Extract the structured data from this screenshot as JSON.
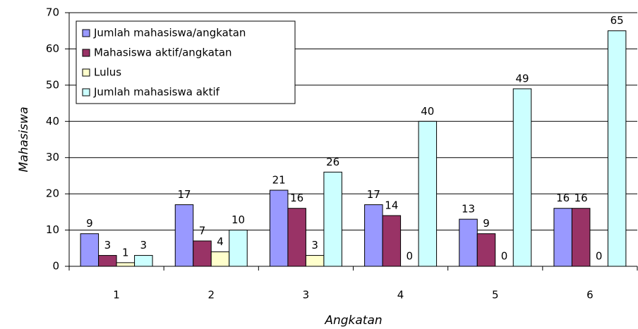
{
  "chart_data": {
    "type": "bar",
    "x_label": "Angkatan",
    "y_label": "Mahasiswa",
    "categories": [
      "1",
      "2",
      "3",
      "4",
      "5",
      "6"
    ],
    "series": [
      {
        "name": "Jumlah mahasiswa/angkatan",
        "color": "#9999ff",
        "values": [
          9,
          17,
          21,
          17,
          13,
          16
        ]
      },
      {
        "name": "Mahasiswa aktif/angkatan",
        "color": "#993366",
        "values": [
          3,
          7,
          16,
          14,
          9,
          16
        ]
      },
      {
        "name": "Lulus",
        "color": "#ffffcc",
        "values": [
          1,
          4,
          3,
          0,
          0,
          0
        ]
      },
      {
        "name": "Jumlah mahasiswa aktif",
        "color": "#ccffff",
        "values": [
          3,
          10,
          26,
          40,
          49,
          65
        ]
      }
    ],
    "ylim": [
      0,
      70
    ],
    "yticks": [
      0,
      10,
      20,
      30,
      40,
      50,
      60,
      70
    ],
    "grid": true,
    "legend": "top-left"
  }
}
